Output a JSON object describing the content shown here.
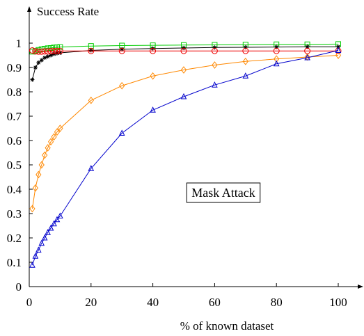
{
  "chart_data": {
    "type": "line",
    "ylabel": "Success Rate",
    "xlabel": "% of known dataset",
    "annotation": "Mask Attack",
    "xlim": [
      0,
      100
    ],
    "ylim": [
      0,
      1
    ],
    "xticks": [
      0,
      20,
      40,
      60,
      80,
      100
    ],
    "yticks": [
      0,
      0.1,
      0.2,
      0.3,
      0.4,
      0.5,
      0.6,
      0.7,
      0.8,
      0.9,
      1
    ],
    "ytick_labels": [
      "0",
      "0.1",
      "0.2",
      "0.3",
      "0.4",
      "0.5",
      "0.6",
      "0.7",
      "0.8",
      "0.9",
      "1"
    ],
    "grid": false,
    "series": [
      {
        "color": "#00cc00",
        "marker": "square",
        "x": [
          1,
          2,
          3,
          4,
          5,
          6,
          7,
          8,
          9,
          10,
          20,
          30,
          40,
          50,
          60,
          70,
          80,
          90,
          100
        ],
        "y": [
          0.965,
          0.968,
          0.972,
          0.975,
          0.977,
          0.979,
          0.98,
          0.982,
          0.983,
          0.984,
          0.988,
          0.99,
          0.991,
          0.992,
          0.993,
          0.994,
          0.995,
          0.995,
          0.996
        ]
      },
      {
        "color": "#000000",
        "marker": "star",
        "x": [
          1,
          2,
          3,
          4,
          5,
          6,
          7,
          8,
          9,
          10,
          20,
          30,
          40,
          50,
          60,
          70,
          80,
          90,
          100
        ],
        "y": [
          0.85,
          0.9,
          0.92,
          0.93,
          0.94,
          0.945,
          0.95,
          0.955,
          0.958,
          0.96,
          0.97,
          0.975,
          0.978,
          0.98,
          0.982,
          0.983,
          0.984,
          0.985,
          0.985
        ]
      },
      {
        "color": "#ee0000",
        "marker": "circle",
        "x": [
          1,
          2,
          3,
          4,
          5,
          6,
          7,
          8,
          9,
          10,
          20,
          30,
          40,
          50,
          60,
          70,
          80,
          90,
          100
        ],
        "y": [
          0.97,
          0.966,
          0.965,
          0.965,
          0.966,
          0.966,
          0.967,
          0.967,
          0.968,
          0.968,
          0.968,
          0.968,
          0.968,
          0.968,
          0.968,
          0.968,
          0.968,
          0.968,
          0.968
        ]
      },
      {
        "color": "#ff8800",
        "marker": "diamond",
        "x": [
          1,
          2,
          3,
          4,
          5,
          6,
          7,
          8,
          9,
          10,
          20,
          30,
          40,
          50,
          60,
          70,
          80,
          90,
          100
        ],
        "y": [
          0.32,
          0.405,
          0.46,
          0.5,
          0.54,
          0.57,
          0.595,
          0.615,
          0.635,
          0.65,
          0.765,
          0.825,
          0.865,
          0.89,
          0.91,
          0.925,
          0.935,
          0.943,
          0.95
        ]
      },
      {
        "color": "#0000cc",
        "marker": "triangle",
        "x": [
          1,
          2,
          3,
          4,
          5,
          6,
          7,
          8,
          9,
          10,
          20,
          30,
          40,
          50,
          60,
          70,
          80,
          90,
          100
        ],
        "y": [
          0.088,
          0.125,
          0.15,
          0.178,
          0.2,
          0.222,
          0.24,
          0.258,
          0.275,
          0.29,
          0.485,
          0.63,
          0.725,
          0.78,
          0.828,
          0.865,
          0.915,
          0.94,
          0.97
        ]
      }
    ]
  }
}
